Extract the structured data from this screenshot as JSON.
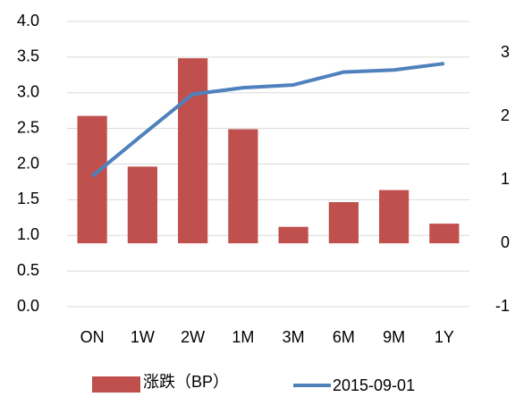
{
  "chart_data": {
    "type": "bar_line",
    "categories": [
      "ON",
      "1W",
      "2W",
      "1M",
      "3M",
      "6M",
      "9M",
      "1Y"
    ],
    "series": [
      {
        "name": "涨跌（BP）",
        "type": "bar",
        "axis": "y2",
        "color": "#c0504d",
        "values": [
          2.01,
          1.21,
          2.92,
          1.8,
          0.26,
          0.65,
          0.84,
          0.31
        ]
      },
      {
        "name": "2015-09-01",
        "type": "line",
        "axis": "y",
        "color": "#4f81bd",
        "values": [
          1.83,
          2.41,
          2.98,
          3.07,
          3.11,
          3.29,
          3.32,
          3.41
        ]
      }
    ],
    "ylim": [
      0,
      4
    ],
    "yticks": [
      {
        "value": 0,
        "label": "0.0"
      },
      {
        "value": 0.5,
        "label": "0.5"
      },
      {
        "value": 1,
        "label": "1.0"
      },
      {
        "value": 1.5,
        "label": "1.5"
      },
      {
        "value": 2,
        "label": "2.0"
      },
      {
        "value": 2.5,
        "label": "2.5"
      },
      {
        "value": 3,
        "label": "3.0"
      },
      {
        "value": 3.5,
        "label": "3.5"
      },
      {
        "value": 4,
        "label": "4.0"
      }
    ],
    "y2lim": [
      -1,
      3.5
    ],
    "y2ticks": [
      -1,
      0,
      1,
      2,
      3
    ],
    "grid": true,
    "legend": "bottom"
  }
}
